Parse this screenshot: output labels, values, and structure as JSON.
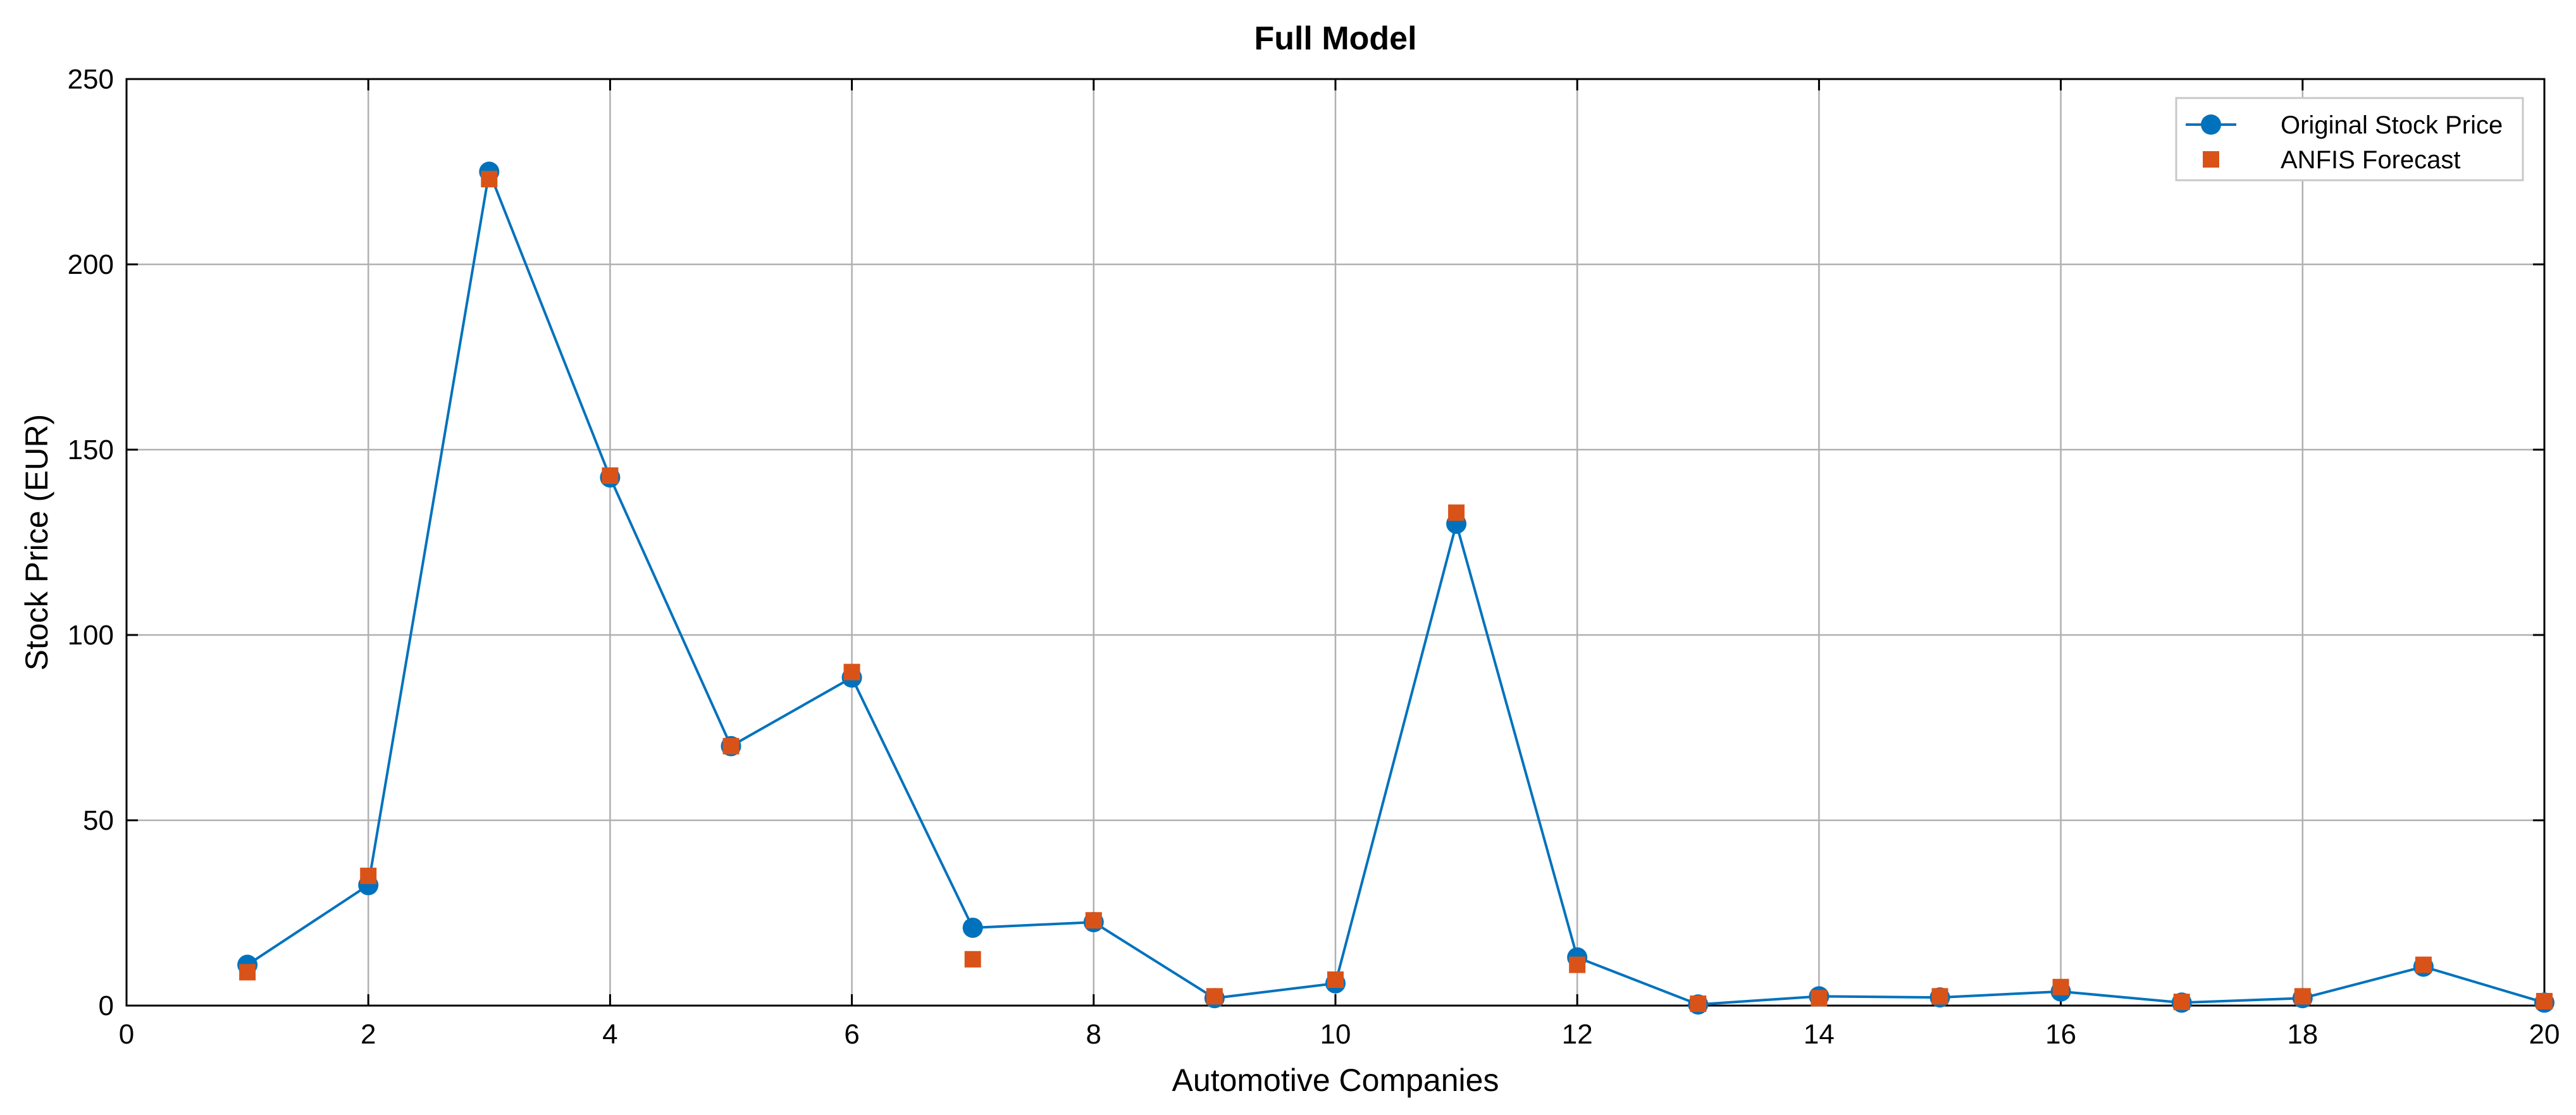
{
  "chart_data": {
    "type": "line",
    "title": "Full Model",
    "xlabel": "Automotive Companies",
    "ylabel": "Stock Price (EUR)",
    "xlim": [
      0,
      20
    ],
    "ylim": [
      0,
      250
    ],
    "xticks": [
      0,
      2,
      4,
      6,
      8,
      10,
      12,
      14,
      16,
      18,
      20
    ],
    "yticks": [
      0,
      50,
      100,
      150,
      200,
      250
    ],
    "grid": true,
    "legend_position": "top-right",
    "x": [
      1,
      2,
      3,
      4,
      5,
      6,
      7,
      8,
      9,
      10,
      11,
      12,
      13,
      14,
      15,
      16,
      17,
      18,
      19,
      20
    ],
    "series": [
      {
        "name": "Original Stock Price",
        "style": "line-with-circle-markers",
        "color": "#0072BD",
        "values": [
          11,
          32.5,
          225,
          142.5,
          70,
          88.5,
          21,
          22.5,
          2,
          6,
          130,
          13,
          0.3,
          2.5,
          2.2,
          3.8,
          0.8,
          2,
          10.5,
          0.8
        ]
      },
      {
        "name": "ANFIS Forecast",
        "style": "square-markers",
        "color": "#D95319",
        "values": [
          9,
          35,
          223,
          143,
          70,
          90,
          12.5,
          23,
          2.5,
          7,
          133,
          11,
          0.5,
          2,
          2.5,
          5,
          1,
          2.5,
          11,
          1.2
        ]
      }
    ]
  }
}
